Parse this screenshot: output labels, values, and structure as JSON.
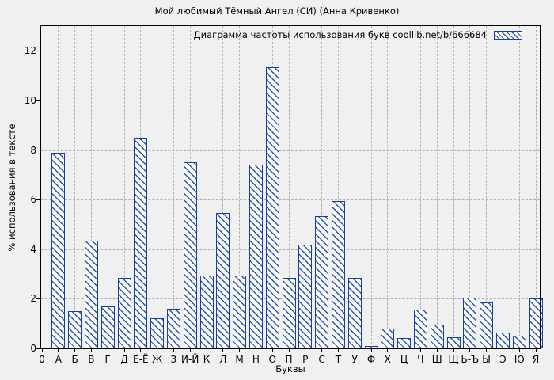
{
  "title": "Мой любимый Тёмный Ангел (СИ) (Анна Кривенко)",
  "legend": {
    "label": "Диаграмма частоты использования букв coollib.net/b/666684",
    "swatch_icon": "hatched-box-sample"
  },
  "colors": {
    "background": "#f0f0f0",
    "bar_outline": "#16419c",
    "bar_hatch": "#2a55a8",
    "bar_fill": "#fafafa",
    "grid": "#b0b0b0",
    "axis": "#000000"
  },
  "chart_data": {
    "type": "bar",
    "title": "Мой любимый Тёмный Ангел (СИ) (Анна Кривенко)",
    "legend": "Диаграмма частоты использования букв coollib.net/b/666684",
    "legend_position": "top-right-inside",
    "xlabel": "Буквы",
    "ylabel": "% использования в тексте",
    "origin_label": "0",
    "ylim": [
      0,
      13
    ],
    "yticks": [
      0,
      2,
      4,
      6,
      8,
      10,
      12
    ],
    "grid": "dashed, both axes",
    "hatch_style": "blue diagonal \\\\ hatch, white fill",
    "categories": [
      "А",
      "Б",
      "В",
      "Г",
      "Д",
      "Е-Ё",
      "Ж",
      "З",
      "И-Й",
      "К",
      "Л",
      "М",
      "Н",
      "О",
      "П",
      "Р",
      "С",
      "Т",
      "У",
      "Ф",
      "Х",
      "Ц",
      "Ч",
      "Ш",
      "Щ",
      "Ь-Ъ",
      "Ы",
      "Э",
      "Ю",
      "Я"
    ],
    "values": [
      7.9,
      1.5,
      4.35,
      1.7,
      2.85,
      8.5,
      1.2,
      1.6,
      7.5,
      2.95,
      5.45,
      2.95,
      7.4,
      11.35,
      2.85,
      4.2,
      5.35,
      5.95,
      2.85,
      0.1,
      0.8,
      0.4,
      1.55,
      0.95,
      0.45,
      2.05,
      1.85,
      0.65,
      0.5,
      2.0
    ]
  }
}
